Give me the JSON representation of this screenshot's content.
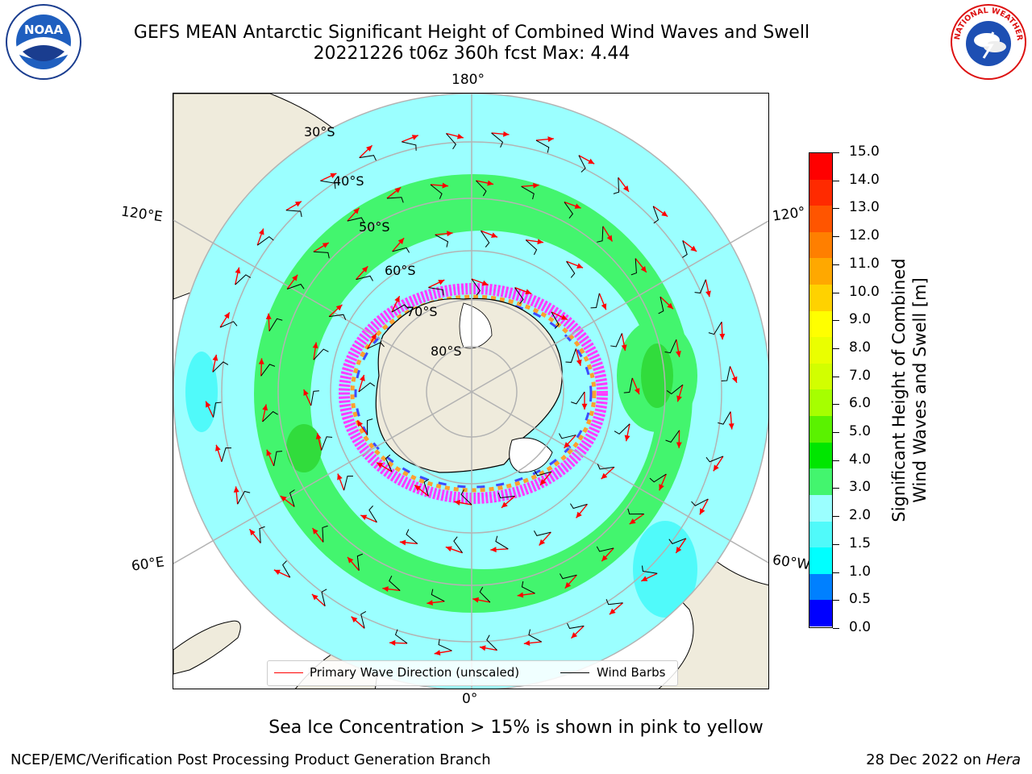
{
  "header": {
    "title_line1": "GEFS MEAN Antarctic Significant Height of Combined Wind Waves and Swell",
    "title_line2": "20221226 t06z 360h fcst   Max: 4.44"
  },
  "logos": {
    "left": {
      "icon": "noaa-seal-icon",
      "text": "NOAA"
    },
    "right": {
      "icon": "nws-seal-icon",
      "ring_text": "NATIONAL WEATHER SERVICE"
    }
  },
  "map": {
    "projection": "south-polar-stereographic",
    "longitude_labels": {
      "top": "180°",
      "bottom": "0°",
      "upper_left": "120°E",
      "upper_right": "120°",
      "lower_left": "60°E",
      "lower_right": "60°W"
    },
    "latitude_labels": [
      "30°S",
      "40°S",
      "50°S",
      "60°S",
      "70°S",
      "80°S"
    ],
    "legend": {
      "wave_direction": "Primary Wave Direction (unscaled)",
      "wind_barbs": "Wind Barbs"
    },
    "colors": {
      "land": "#efebdc",
      "ocean_2_3m": "#9bffff",
      "ocean_3_4m": "#43f56e",
      "sea_ice": "#ff3cff",
      "ice_edge_orange": "#ffa030",
      "arrows": "#ff0000",
      "barbs": "#000000",
      "grid": "#b3b3b3"
    }
  },
  "colorbar": {
    "label_line1": "Significant Height of Combined",
    "label_line2": "Wind Waves and Swell [m]",
    "ticks": [
      "15.0",
      "14.0",
      "13.0",
      "12.0",
      "11.0",
      "10.0",
      "9.0",
      "8.0",
      "7.0",
      "6.0",
      "5.0",
      "4.0",
      "3.0",
      "2.0",
      "1.5",
      "1.0",
      "0.5",
      "0.0"
    ],
    "segment_colors": [
      "#ff0000",
      "#ff2a00",
      "#ff5500",
      "#ff7f00",
      "#ffa800",
      "#ffd200",
      "#ffff00",
      "#eaff00",
      "#d2ff00",
      "#a6ff00",
      "#5af200",
      "#00e600",
      "#43f56e",
      "#9bffff",
      "#50fafa",
      "#00ffff",
      "#0080ff",
      "#0000ff"
    ]
  },
  "footer": {
    "note": "Sea Ice Concentration > 15% is shown in pink to yellow",
    "credit": "NCEP/EMC/Verification Post Processing Product Generation Branch",
    "date": "28 Dec 2022 on",
    "machine": "Hera"
  }
}
